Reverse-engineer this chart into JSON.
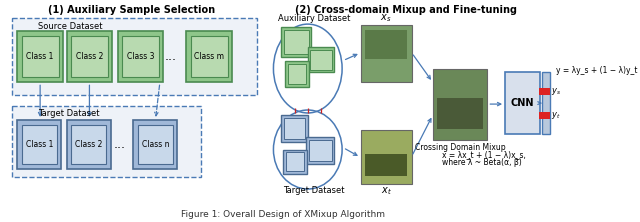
{
  "title": "Figure 1: Overall Design of XMixup Algorithm",
  "section1_title": "(1) Auxiliary Sample Selection",
  "section2_title": "(2) Cross-domain Mixup and Fine-tuning",
  "source_label": "Source Dataset",
  "target_label": "Target Dataset",
  "aux_label": "Auxiliary Dataset",
  "target2_label": "Target Dataset",
  "source_classes": [
    "Class 1",
    "Class 2",
    "Class 3",
    "Class m"
  ],
  "target_classes": [
    "Class 1",
    "Class 2",
    "Class n"
  ],
  "cnn_label": "CNN",
  "crossing_label": "Crossing Domain Mixup",
  "formula1": "y = λy_s + (1 − λ)y_t",
  "formula2": "x = λx_t + (1 − λ)x_s,",
  "formula3": "where λ ~ Beta(α, β)",
  "bg_color": "#ffffff",
  "box_color_green": "#8ec68a",
  "box_color_green2": "#b8dab0",
  "box_color_blue": "#a0b8d8",
  "box_color_blue2": "#c8d8ea",
  "box_edge_green": "#4a8a50",
  "box_edge_blue": "#4a6a90",
  "arrow_color": "#4a7ab5",
  "red_dash_color": "#cc2222",
  "outer_box_color": "#4a7ab5",
  "ellipse_color": "#4a7ab5",
  "red_marker_color": "#dd2222",
  "cnn_face": "#d8e0ec",
  "out_bar_face": "#b8c8dc",
  "img_green": "#7a9e6a",
  "img_mixed": "#6a8858",
  "img_blue": "#8a7a3a"
}
